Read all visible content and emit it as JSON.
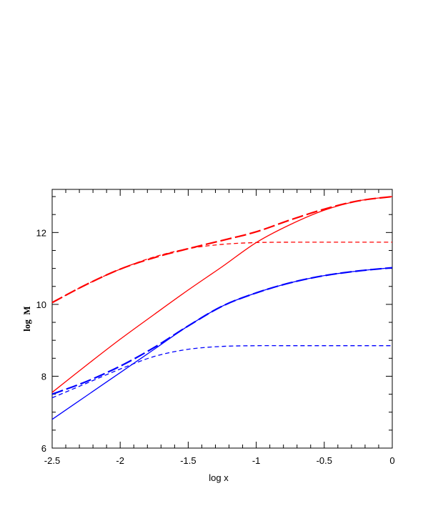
{
  "chart_data": {
    "type": "line",
    "title": "",
    "xlabel": "log x",
    "ylabel": "log  M",
    "xlim": [
      -2.5,
      0
    ],
    "ylim": [
      6,
      13.2
    ],
    "xticks": [
      -2.5,
      -2,
      -1.5,
      -1,
      -0.5,
      0
    ],
    "xtick_labels": [
      "-2.5",
      "-2",
      "-1.5",
      "-1",
      "-0.5",
      "0"
    ],
    "yticks": [
      6,
      8,
      10,
      12
    ],
    "ytick_labels": [
      "6",
      "8",
      "10",
      "12"
    ],
    "grid": false,
    "legend": "none",
    "series": [
      {
        "color": "#ff0000",
        "style": "long-dash",
        "x": [
          -2.5,
          -2.25,
          -2.0,
          -1.75,
          -1.5,
          -1.25,
          -1.0,
          -0.75,
          -0.5,
          -0.25,
          0.0
        ],
        "y": [
          10.05,
          10.55,
          10.98,
          11.3,
          11.55,
          11.78,
          12.02,
          12.35,
          12.65,
          12.88,
          13.0
        ]
      },
      {
        "color": "#ff0000",
        "style": "short-dash",
        "x": [
          -2.5,
          -2.25,
          -2.0,
          -1.75,
          -1.5,
          -1.25,
          -1.0,
          -0.75,
          -0.5,
          -0.25,
          0.0
        ],
        "y": [
          10.05,
          10.55,
          10.98,
          11.32,
          11.55,
          11.67,
          11.72,
          11.73,
          11.73,
          11.73,
          11.73
        ]
      },
      {
        "color": "#ff0000",
        "style": "solid",
        "x": [
          -2.5,
          -2.25,
          -2.0,
          -1.75,
          -1.5,
          -1.25,
          -1.0,
          -0.75,
          -0.5,
          -0.25,
          0.0
        ],
        "y": [
          7.55,
          8.3,
          9.03,
          9.72,
          10.4,
          11.05,
          11.72,
          12.22,
          12.62,
          12.88,
          13.0
        ]
      },
      {
        "color": "#0000ff",
        "style": "long-dash",
        "x": [
          -2.5,
          -2.25,
          -2.0,
          -1.75,
          -1.5,
          -1.25,
          -1.0,
          -0.75,
          -0.5,
          -0.25,
          0.0
        ],
        "y": [
          7.5,
          7.85,
          8.28,
          8.8,
          9.4,
          9.95,
          10.32,
          10.6,
          10.8,
          10.93,
          11.02
        ]
      },
      {
        "color": "#0000ff",
        "style": "short-dash",
        "x": [
          -2.5,
          -2.25,
          -2.0,
          -1.75,
          -1.5,
          -1.25,
          -1.0,
          -0.75,
          -0.5,
          -0.25,
          0.0
        ],
        "y": [
          7.4,
          7.8,
          8.2,
          8.55,
          8.75,
          8.83,
          8.85,
          8.85,
          8.85,
          8.85,
          8.85
        ]
      },
      {
        "color": "#0000ff",
        "style": "solid",
        "x": [
          -2.5,
          -2.25,
          -2.0,
          -1.75,
          -1.5,
          -1.25,
          -1.0,
          -0.75,
          -0.5,
          -0.25,
          0.0
        ],
        "y": [
          6.8,
          7.45,
          8.1,
          8.75,
          9.4,
          9.95,
          10.32,
          10.6,
          10.8,
          10.93,
          11.02
        ]
      }
    ]
  }
}
